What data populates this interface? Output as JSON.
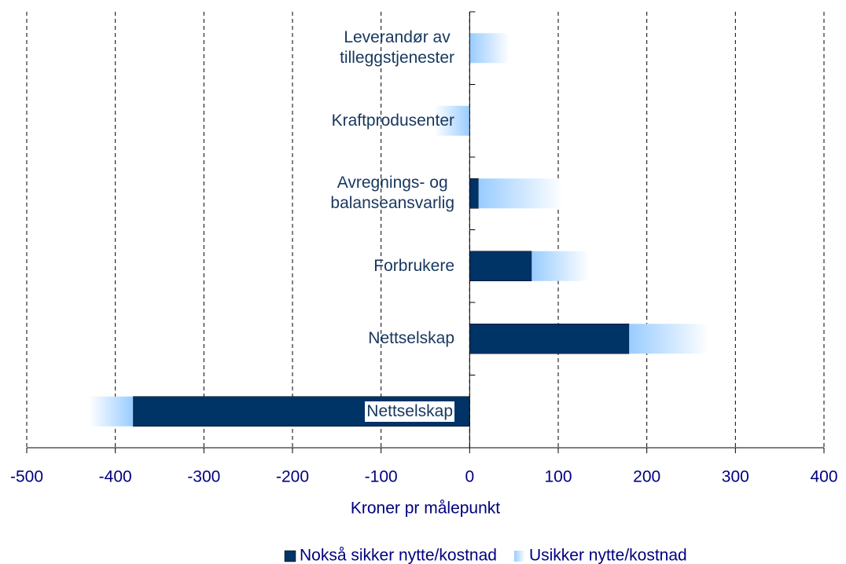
{
  "chart_data": {
    "type": "stacked-barh",
    "xlabel": "Kroner pr målepunkt",
    "categories": [
      "Leverandør av\ntilleggstjenester",
      "Kraftprodusenter",
      "Avregnings- og\nbalanseansvarlig",
      "Forbrukere",
      "Nettselskap",
      "Nettselskap"
    ],
    "series": [
      {
        "name": "Nokså sikker nytte/kostnad",
        "color": "#003366",
        "values": [
          0,
          0,
          10,
          70,
          180,
          -380
        ]
      },
      {
        "name": "Usikker nytte/kostnad",
        "color": "#99ccff",
        "values": [
          45,
          -40,
          95,
          65,
          90,
          -50
        ]
      }
    ],
    "xlim": [
      -500,
      400
    ],
    "xticks": [
      -500,
      -400,
      -300,
      -200,
      -100,
      0,
      100,
      200,
      300,
      400
    ],
    "grid": true,
    "legend": "bottom"
  }
}
